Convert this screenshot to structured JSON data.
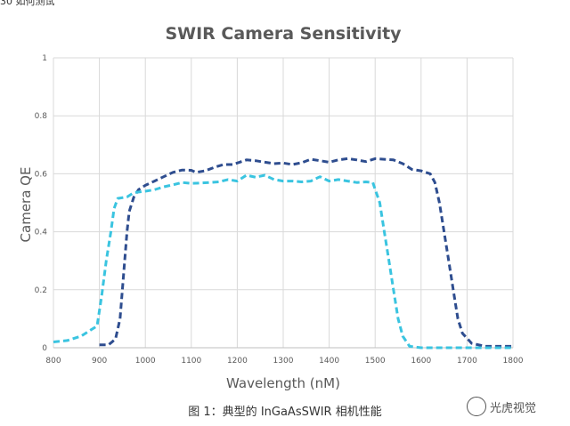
{
  "top_fragment": "30 如何测试",
  "caption": "图 1：典型的 InGaAsSWIR 相机性能",
  "watermark": "光虎视觉",
  "colors": {
    "series_dark": "#2e4d8f",
    "series_light": "#3ac4e0",
    "grid": "#d9d9d9",
    "text": "#595959"
  },
  "chart_data": {
    "type": "line",
    "title": "SWIR Camera Sensitivity",
    "xlabel": "Wavelength (nM)",
    "ylabel": "Camera QE",
    "xlim": [
      800,
      1800
    ],
    "ylim": [
      0,
      1
    ],
    "x_ticks": [
      "800",
      "900",
      "1000",
      "1100",
      "1200",
      "1300",
      "1400",
      "1500",
      "1600",
      "1700",
      "1800"
    ],
    "y_ticks": [
      "0",
      "0.2",
      "0.4",
      "0.6",
      "0.8",
      "1"
    ],
    "grid": true,
    "legend": "none",
    "line_style": "dashed",
    "series": [
      {
        "color": "#2e4d8f",
        "points": [
          [
            900,
            0.01
          ],
          [
            920,
            0.01
          ],
          [
            935,
            0.03
          ],
          [
            945,
            0.1
          ],
          [
            950,
            0.2
          ],
          [
            955,
            0.3
          ],
          [
            960,
            0.4
          ],
          [
            965,
            0.47
          ],
          [
            975,
            0.52
          ],
          [
            985,
            0.545
          ],
          [
            1000,
            0.56
          ],
          [
            1020,
            0.575
          ],
          [
            1040,
            0.59
          ],
          [
            1060,
            0.605
          ],
          [
            1080,
            0.613
          ],
          [
            1100,
            0.612
          ],
          [
            1110,
            0.605
          ],
          [
            1130,
            0.61
          ],
          [
            1150,
            0.622
          ],
          [
            1170,
            0.632
          ],
          [
            1190,
            0.632
          ],
          [
            1205,
            0.64
          ],
          [
            1220,
            0.648
          ],
          [
            1240,
            0.645
          ],
          [
            1260,
            0.64
          ],
          [
            1280,
            0.635
          ],
          [
            1300,
            0.637
          ],
          [
            1320,
            0.632
          ],
          [
            1340,
            0.638
          ],
          [
            1360,
            0.65
          ],
          [
            1380,
            0.645
          ],
          [
            1400,
            0.64
          ],
          [
            1420,
            0.648
          ],
          [
            1440,
            0.652
          ],
          [
            1460,
            0.648
          ],
          [
            1480,
            0.642
          ],
          [
            1500,
            0.652
          ],
          [
            1520,
            0.65
          ],
          [
            1540,
            0.648
          ],
          [
            1560,
            0.635
          ],
          [
            1580,
            0.615
          ],
          [
            1600,
            0.61
          ],
          [
            1620,
            0.6
          ],
          [
            1630,
            0.57
          ],
          [
            1640,
            0.5
          ],
          [
            1650,
            0.4
          ],
          [
            1660,
            0.3
          ],
          [
            1670,
            0.2
          ],
          [
            1680,
            0.1
          ],
          [
            1690,
            0.05
          ],
          [
            1710,
            0.015
          ],
          [
            1740,
            0.005
          ],
          [
            1780,
            0.005
          ],
          [
            1800,
            0.005
          ]
        ]
      },
      {
        "color": "#3ac4e0",
        "points": [
          [
            800,
            0.02
          ],
          [
            830,
            0.025
          ],
          [
            860,
            0.04
          ],
          [
            880,
            0.06
          ],
          [
            895,
            0.075
          ],
          [
            905,
            0.18
          ],
          [
            915,
            0.3
          ],
          [
            925,
            0.4
          ],
          [
            932,
            0.48
          ],
          [
            940,
            0.515
          ],
          [
            960,
            0.52
          ],
          [
            975,
            0.535
          ],
          [
            1000,
            0.54
          ],
          [
            1020,
            0.545
          ],
          [
            1040,
            0.555
          ],
          [
            1060,
            0.562
          ],
          [
            1080,
            0.57
          ],
          [
            1100,
            0.567
          ],
          [
            1120,
            0.568
          ],
          [
            1140,
            0.57
          ],
          [
            1160,
            0.572
          ],
          [
            1180,
            0.58
          ],
          [
            1200,
            0.575
          ],
          [
            1220,
            0.595
          ],
          [
            1240,
            0.588
          ],
          [
            1260,
            0.595
          ],
          [
            1280,
            0.58
          ],
          [
            1300,
            0.575
          ],
          [
            1320,
            0.575
          ],
          [
            1340,
            0.572
          ],
          [
            1360,
            0.575
          ],
          [
            1380,
            0.59
          ],
          [
            1400,
            0.575
          ],
          [
            1420,
            0.58
          ],
          [
            1440,
            0.575
          ],
          [
            1460,
            0.57
          ],
          [
            1480,
            0.572
          ],
          [
            1495,
            0.57
          ],
          [
            1510,
            0.5
          ],
          [
            1520,
            0.4
          ],
          [
            1530,
            0.3
          ],
          [
            1540,
            0.2
          ],
          [
            1550,
            0.1
          ],
          [
            1560,
            0.04
          ],
          [
            1575,
            0.005
          ],
          [
            1600,
            0.0
          ],
          [
            1700,
            0.0
          ],
          [
            1760,
            0.0
          ],
          [
            1800,
            0.0
          ]
        ]
      }
    ]
  }
}
